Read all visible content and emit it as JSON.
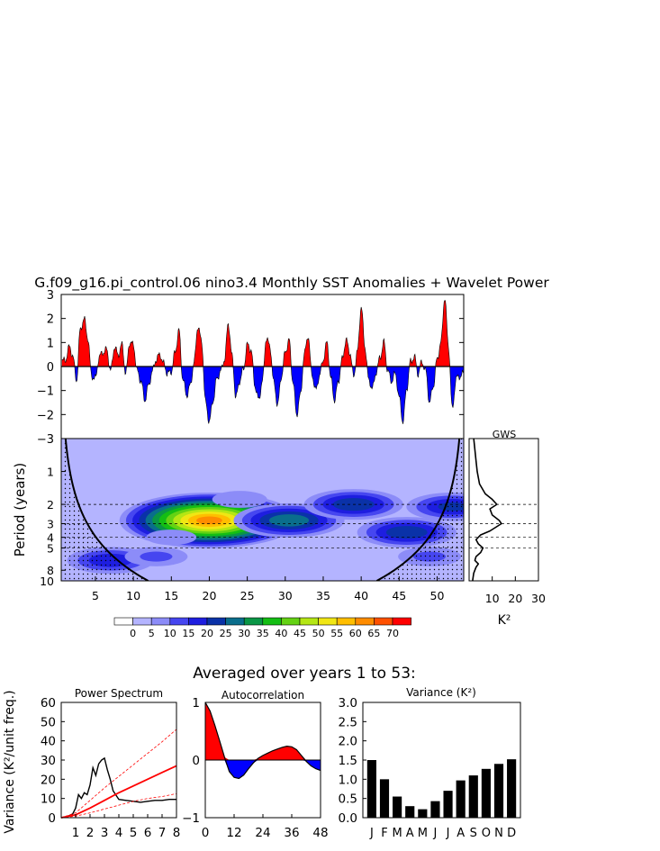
{
  "title": "G.f09_g16.pi_control.06 nino3.4 Monthly SST Anomalies + Wavelet Power",
  "colors": {
    "positive": "#ff0000",
    "negative": "#0000ff",
    "wavelet_levels": [
      "#ffffff",
      "#b4b4ff",
      "#8c8cf8",
      "#4646f0",
      "#1e1ee0",
      "#0a32a8",
      "#0a6e8c",
      "#0a9646",
      "#14be14",
      "#64d214",
      "#b4e614",
      "#f0e614",
      "#ffbe00",
      "#ff8c00",
      "#ff5000",
      "#ff0000"
    ]
  },
  "chart_data": [
    {
      "id": "sst-anomaly",
      "type": "area",
      "title": "",
      "xlabel": "",
      "ylabel": "",
      "xlim": [
        0.5,
        53.5
      ],
      "ylim": [
        -3,
        3
      ],
      "yticks": [
        "3",
        "2",
        "1",
        "0",
        "−1",
        "−2",
        "−3"
      ],
      "series": [
        {
          "x": [
            0.6,
            1,
            1.5,
            2,
            2.5,
            3,
            3.5,
            4,
            4.5,
            5,
            5.5,
            6,
            6.5,
            7,
            7.5,
            8,
            8.5,
            9,
            9.5,
            10,
            10.5,
            11,
            11.5,
            12,
            12.5,
            13,
            13.5,
            14,
            14.5,
            15,
            15.5,
            16,
            16.5,
            17,
            17.5,
            18,
            18.5,
            19,
            19.5,
            20,
            20.5,
            21,
            21.5,
            22,
            22.5,
            23,
            23.5,
            24,
            24.5,
            25,
            25.5,
            26,
            26.5,
            27,
            27.5,
            28,
            28.5,
            29,
            29.5,
            30,
            30.5,
            31,
            31.5,
            32,
            32.5,
            33,
            33.5,
            34,
            34.5,
            35,
            35.5,
            36,
            36.5,
            37,
            37.5,
            38,
            38.5,
            39,
            39.5,
            40,
            40.5,
            41,
            41.5,
            42,
            42.5,
            43,
            43.5,
            44,
            44.5,
            45,
            45.5,
            46,
            46.5,
            47,
            47.5,
            48,
            48.5,
            49,
            49.5,
            50,
            50.5,
            51,
            51.5,
            52,
            52.5,
            53,
            53.5
          ],
          "y": [
            0.3,
            0.2,
            0.8,
            0.5,
            -0.6,
            1.5,
            2.0,
            1.2,
            -0.4,
            -0.5,
            0.4,
            0.6,
            0.7,
            -0.2,
            0.8,
            0.5,
            0.9,
            -0.3,
            1.0,
            0.9,
            -0.2,
            -0.6,
            -1.4,
            -0.8,
            -0.2,
            0.3,
            0.5,
            0.1,
            -0.3,
            -0.2,
            0.6,
            1.5,
            -0.5,
            -1.2,
            -0.8,
            0.2,
            1.7,
            1.0,
            -1.5,
            -2.3,
            -1.4,
            -0.5,
            -0.2,
            0.3,
            1.8,
            0.4,
            -1.3,
            -0.6,
            -0.1,
            0.9,
            0.7,
            -0.8,
            -1.4,
            -0.6,
            1.2,
            0.8,
            -0.7,
            -1.6,
            -0.4,
            0.6,
            1.1,
            -0.6,
            -2.0,
            -1.2,
            0.5,
            1.3,
            -0.3,
            -1.0,
            -0.4,
            0.3,
            1.0,
            -0.5,
            -1.4,
            -0.6,
            0.3,
            1.1,
            0.6,
            -0.4,
            0.6,
            2.5,
            0.8,
            -0.6,
            -0.9,
            -0.2,
            0.4,
            1.0,
            -0.2,
            -0.6,
            -0.3,
            -1.3,
            -2.3,
            -0.9,
            0.2,
            0.4,
            -0.3,
            0.2,
            -0.2,
            -1.5,
            -0.8,
            0.3,
            1.0,
            2.9,
            0.8,
            -1.8,
            -0.5,
            -0.4,
            -0.3
          ]
        }
      ]
    },
    {
      "id": "wavelet-power",
      "type": "heatmap",
      "ylabel": "Period (years)",
      "xlim": [
        0.5,
        53.5
      ],
      "xticks": [
        5,
        10,
        15,
        20,
        25,
        30,
        35,
        40,
        45,
        50
      ],
      "yticks": [
        1,
        2,
        3,
        4,
        5,
        8,
        10
      ],
      "ylim": [
        0.5,
        10
      ],
      "log_y": true,
      "reference_periods": [
        2,
        3,
        4,
        5
      ],
      "contour_levels": [
        0,
        5,
        10,
        15,
        20,
        25,
        30,
        35,
        40,
        45,
        50,
        55,
        60,
        65,
        70
      ],
      "colorbar_labels": [
        "0",
        "5",
        "10",
        "15",
        "20",
        "25",
        "30",
        "35",
        "40",
        "45",
        "50",
        "55",
        "60",
        "65",
        "70"
      ],
      "blobs": [
        {
          "x": 20,
          "period": 2.8,
          "power": 62
        },
        {
          "x": 30.5,
          "period": 2.8,
          "power": 30
        },
        {
          "x": 39,
          "period": 2.0,
          "power": 25
        },
        {
          "x": 46,
          "period": 3.6,
          "power": 25
        },
        {
          "x": 52,
          "period": 2.1,
          "power": 22
        },
        {
          "x": 7,
          "period": 6.5,
          "power": 20
        },
        {
          "x": 13,
          "period": 6.0,
          "power": 12
        },
        {
          "x": 49,
          "period": 6.0,
          "power": 12
        },
        {
          "x": 24,
          "period": 1.8,
          "power": 10
        },
        {
          "x": 15,
          "period": 4.0,
          "power": 9
        }
      ]
    },
    {
      "id": "global-wavelet-spectrum",
      "type": "line",
      "title": "GWS",
      "xlabel": "K²",
      "xlim": [
        0,
        30
      ],
      "xticks": [
        10,
        20,
        30
      ],
      "series": [
        {
          "period": [
            0.5,
            0.8,
            1.0,
            1.3,
            1.6,
            1.8,
            2.0,
            2.2,
            2.5,
            2.8,
            3.0,
            3.5,
            3.8,
            4.2,
            4.6,
            5.0,
            5.5,
            6.0,
            6.5,
            7.0,
            7.5,
            8.5,
            10
          ],
          "power": [
            2,
            3,
            3.5,
            4.5,
            7,
            10,
            12,
            9,
            10,
            13,
            14,
            9,
            5,
            3,
            4,
            6,
            5,
            3,
            2.5,
            4,
            3,
            2,
            1.5
          ]
        }
      ]
    },
    {
      "id": "power-spectrum",
      "type": "line",
      "title": "Power Spectrum",
      "ylabel": "Variance (K²/unit freq.)",
      "xlim": [
        0,
        8
      ],
      "ylim": [
        0,
        60
      ],
      "xticks": [
        "1",
        "2",
        "3",
        "4",
        "5",
        "6",
        "7",
        "8"
      ],
      "yticks": [
        "0",
        "10",
        "20",
        "30",
        "40",
        "50",
        "60"
      ],
      "series": [
        {
          "x": [
            0,
            0.4,
            0.8,
            1.0,
            1.2,
            1.4,
            1.6,
            1.8,
            2.0,
            2.2,
            2.4,
            2.6,
            2.8,
            3.0,
            3.2,
            3.4,
            3.6,
            4.0,
            4.5,
            5.0,
            5.5,
            6.0,
            6.5,
            7.0,
            7.5,
            8.0
          ],
          "y": [
            0,
            0.5,
            2,
            5,
            12,
            10,
            13,
            12,
            17,
            26,
            22,
            28,
            30,
            31,
            25,
            20,
            14,
            9.5,
            9,
            8.5,
            8,
            8.5,
            9,
            9,
            9.5,
            9.5
          ]
        },
        {
          "x": [
            0,
            1,
            2,
            3,
            4,
            5,
            6,
            7,
            8
          ],
          "y": [
            0,
            1.5,
            5,
            9,
            13,
            16.5,
            20,
            23.5,
            27
          ]
        },
        {
          "x": [
            0,
            1,
            2,
            3,
            4,
            5,
            6,
            7,
            8
          ],
          "y": [
            0,
            2.5,
            9,
            15.5,
            21.5,
            27.5,
            33.5,
            39.5,
            46
          ]
        },
        {
          "x": [
            0,
            1,
            2,
            3,
            4,
            5,
            6,
            7,
            8
          ],
          "y": [
            0,
            0.8,
            2.5,
            4.5,
            6.5,
            8.5,
            10,
            11,
            12.5
          ]
        }
      ]
    },
    {
      "id": "autocorrelation",
      "type": "area",
      "title": "Autocorrelation",
      "xlim": [
        0,
        48
      ],
      "ylim": [
        -1,
        1
      ],
      "xticks": [
        "0",
        "12",
        "24",
        "36",
        "48"
      ],
      "yticks": [
        "1",
        "0",
        "−1"
      ],
      "series": [
        {
          "x": [
            0,
            2,
            4,
            6,
            8,
            10,
            12,
            14,
            16,
            18,
            20,
            22,
            24,
            26,
            28,
            30,
            32,
            34,
            36,
            38,
            40,
            42,
            44,
            46,
            48
          ],
          "y": [
            1.0,
            0.85,
            0.6,
            0.33,
            0.05,
            -0.2,
            -0.3,
            -0.32,
            -0.26,
            -0.15,
            -0.05,
            0.03,
            0.08,
            0.12,
            0.16,
            0.19,
            0.22,
            0.24,
            0.23,
            0.18,
            0.08,
            -0.02,
            -0.1,
            -0.15,
            -0.18
          ]
        }
      ]
    },
    {
      "id": "monthly-variance",
      "type": "bar",
      "title": "Variance (K²)",
      "categories": [
        "J",
        "F",
        "M",
        "A",
        "M",
        "J",
        "J",
        "A",
        "S",
        "O",
        "N",
        "D"
      ],
      "values": [
        1.5,
        1.0,
        0.55,
        0.3,
        0.22,
        0.43,
        0.7,
        0.97,
        1.1,
        1.27,
        1.4,
        1.52
      ],
      "ylim": [
        0,
        3
      ],
      "yticks": [
        "0.0",
        "0.5",
        "1.0",
        "1.5",
        "2.0",
        "2.5",
        "3.0"
      ]
    }
  ],
  "averaged_title": "Averaged over years 1 to 53:"
}
